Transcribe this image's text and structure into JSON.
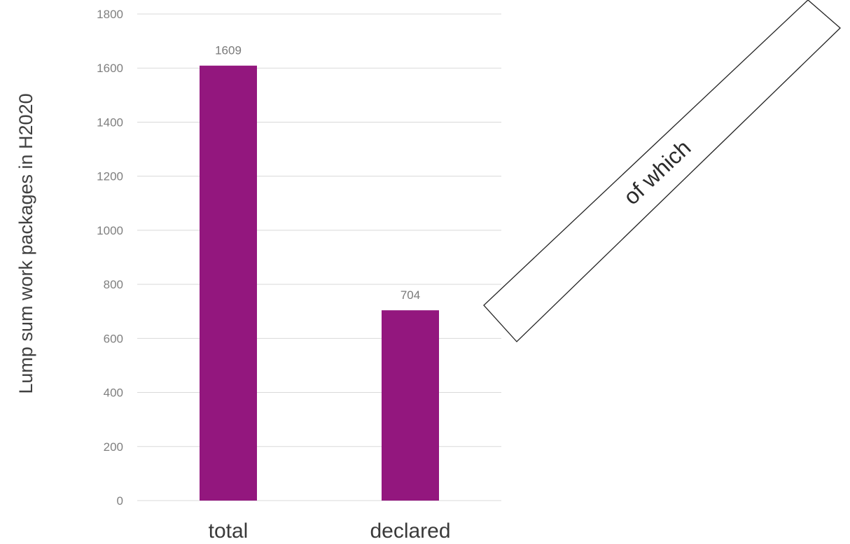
{
  "chart_data": {
    "type": "bar",
    "categories": [
      "total",
      "declared"
    ],
    "values": [
      1609,
      704
    ],
    "data_labels": [
      "1609",
      "704"
    ],
    "title": "",
    "xlabel": "",
    "ylabel": "Lump sum work packages in H2020",
    "ylim": [
      0,
      1800
    ],
    "yticks": [
      0,
      200,
      400,
      600,
      800,
      1000,
      1200,
      1400,
      1600,
      1800
    ],
    "grid": true,
    "legend": "none",
    "bar_color": "#93177e"
  },
  "annotation": {
    "text": "of which"
  }
}
